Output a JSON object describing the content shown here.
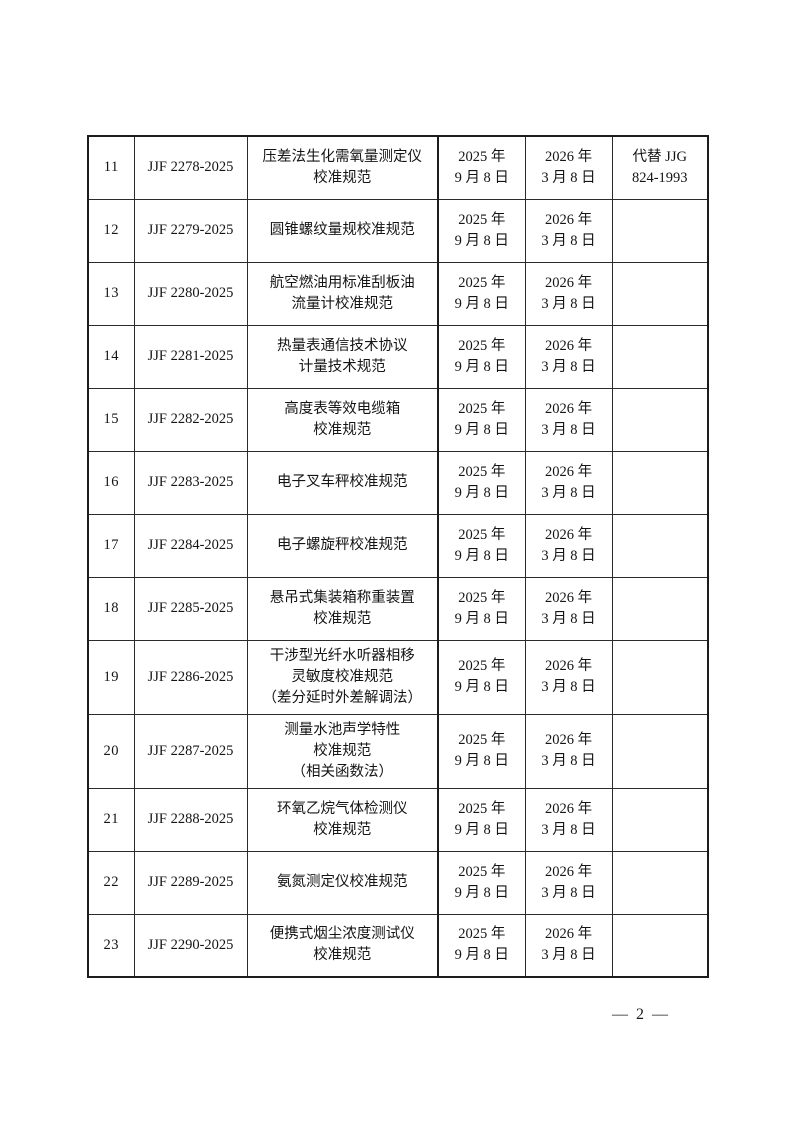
{
  "page": {
    "number_label": "— 2 —"
  },
  "table": {
    "rows": [
      {
        "index": "11",
        "code": "JJF 2278-2025",
        "title_lines": [
          "压差法生化需氧量测定仪",
          "校准规范"
        ],
        "release_date_lines": [
          "2025 年",
          "9 月 8 日"
        ],
        "implementation_date_lines": [
          "2026 年",
          "3 月 8 日"
        ],
        "remark_lines": [
          "代替 JJG",
          "824-1993"
        ]
      },
      {
        "index": "12",
        "code": "JJF 2279-2025",
        "title_lines": [
          "圆锥螺纹量规校准规范"
        ],
        "release_date_lines": [
          "2025 年",
          "9 月 8 日"
        ],
        "implementation_date_lines": [
          "2026 年",
          "3 月 8 日"
        ],
        "remark_lines": []
      },
      {
        "index": "13",
        "code": "JJF 2280-2025",
        "title_lines": [
          "航空燃油用标准刮板油",
          "流量计校准规范"
        ],
        "release_date_lines": [
          "2025 年",
          "9 月 8 日"
        ],
        "implementation_date_lines": [
          "2026 年",
          "3 月 8 日"
        ],
        "remark_lines": []
      },
      {
        "index": "14",
        "code": "JJF 2281-2025",
        "title_lines": [
          "热量表通信技术协议",
          "计量技术规范"
        ],
        "release_date_lines": [
          "2025 年",
          "9 月 8 日"
        ],
        "implementation_date_lines": [
          "2026 年",
          "3 月 8 日"
        ],
        "remark_lines": []
      },
      {
        "index": "15",
        "code": "JJF 2282-2025",
        "title_lines": [
          "高度表等效电缆箱",
          "校准规范"
        ],
        "release_date_lines": [
          "2025 年",
          "9 月 8 日"
        ],
        "implementation_date_lines": [
          "2026 年",
          "3 月 8 日"
        ],
        "remark_lines": []
      },
      {
        "index": "16",
        "code": "JJF 2283-2025",
        "title_lines": [
          "电子叉车秤校准规范"
        ],
        "release_date_lines": [
          "2025 年",
          "9 月 8 日"
        ],
        "implementation_date_lines": [
          "2026 年",
          "3 月 8 日"
        ],
        "remark_lines": []
      },
      {
        "index": "17",
        "code": "JJF 2284-2025",
        "title_lines": [
          "电子螺旋秤校准规范"
        ],
        "release_date_lines": [
          "2025 年",
          "9 月 8 日"
        ],
        "implementation_date_lines": [
          "2026 年",
          "3 月 8 日"
        ],
        "remark_lines": []
      },
      {
        "index": "18",
        "code": "JJF 2285-2025",
        "title_lines": [
          "悬吊式集装箱称重装置",
          "校准规范"
        ],
        "release_date_lines": [
          "2025 年",
          "9 月 8 日"
        ],
        "implementation_date_lines": [
          "2026 年",
          "3 月 8 日"
        ],
        "remark_lines": []
      },
      {
        "index": "19",
        "code": "JJF 2286-2025",
        "title_lines": [
          "干涉型光纤水听器相移",
          "灵敏度校准规范",
          "（差分延时外差解调法）"
        ],
        "release_date_lines": [
          "2025 年",
          "9 月 8 日"
        ],
        "implementation_date_lines": [
          "2026 年",
          "3 月 8 日"
        ],
        "remark_lines": []
      },
      {
        "index": "20",
        "code": "JJF 2287-2025",
        "title_lines": [
          "测量水池声学特性",
          "校准规范",
          "（相关函数法）"
        ],
        "release_date_lines": [
          "2025 年",
          "9 月 8 日"
        ],
        "implementation_date_lines": [
          "2026 年",
          "3 月 8 日"
        ],
        "remark_lines": []
      },
      {
        "index": "21",
        "code": "JJF 2288-2025",
        "title_lines": [
          "环氧乙烷气体检测仪",
          "校准规范"
        ],
        "release_date_lines": [
          "2025 年",
          "9 月 8 日"
        ],
        "implementation_date_lines": [
          "2026 年",
          "3 月 8 日"
        ],
        "remark_lines": []
      },
      {
        "index": "22",
        "code": "JJF 2289-2025",
        "title_lines": [
          "氨氮测定仪校准规范"
        ],
        "release_date_lines": [
          "2025 年",
          "9 月 8 日"
        ],
        "implementation_date_lines": [
          "2026 年",
          "3 月 8 日"
        ],
        "remark_lines": []
      },
      {
        "index": "23",
        "code": "JJF 2290-2025",
        "title_lines": [
          "便携式烟尘浓度测试仪",
          "校准规范"
        ],
        "release_date_lines": [
          "2025 年",
          "9 月 8 日"
        ],
        "implementation_date_lines": [
          "2026 年",
          "3 月 8 日"
        ],
        "remark_lines": []
      }
    ]
  }
}
